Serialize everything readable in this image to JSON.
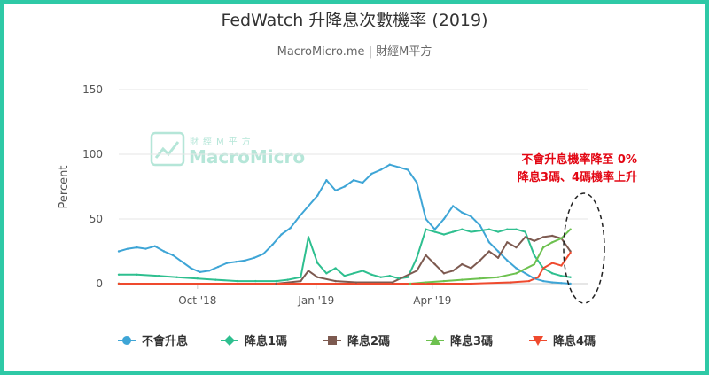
{
  "chart_data": {
    "type": "line",
    "title": "FedWatch 升降息次數機率 (2019)",
    "subtitle": "MacroMicro.me | 財經M平方",
    "ylabel": "Percent",
    "ylim": [
      0,
      150
    ],
    "yticks": [
      0,
      50,
      100,
      150
    ],
    "xlim": [
      "2018-08-01",
      "2019-07-31"
    ],
    "xticks": [
      {
        "date": "2018-10-01",
        "label": "Oct '18"
      },
      {
        "date": "2019-01-01",
        "label": "Jan '19"
      },
      {
        "date": "2019-04-01",
        "label": "Apr '19"
      }
    ],
    "grid": true,
    "legend_position": "bottom",
    "annotation": {
      "line1": "不會升息機率降至 0%",
      "line2": "降息3碼、4碼機率上升"
    },
    "watermark": {
      "top": "財經M平方",
      "bottom": "MacroMicro"
    },
    "series": [
      {
        "name": "不會升息",
        "color": "#3ea5d6",
        "marker": "circle",
        "points": [
          [
            "2018-08-01",
            25
          ],
          [
            "2018-08-08",
            27
          ],
          [
            "2018-08-15",
            28
          ],
          [
            "2018-08-22",
            27
          ],
          [
            "2018-08-29",
            29
          ],
          [
            "2018-09-05",
            25
          ],
          [
            "2018-09-12",
            22
          ],
          [
            "2018-09-19",
            17
          ],
          [
            "2018-09-26",
            12
          ],
          [
            "2018-10-03",
            9
          ],
          [
            "2018-10-10",
            10
          ],
          [
            "2018-10-17",
            13
          ],
          [
            "2018-10-24",
            16
          ],
          [
            "2018-10-31",
            17
          ],
          [
            "2018-11-07",
            18
          ],
          [
            "2018-11-14",
            20
          ],
          [
            "2018-11-21",
            23
          ],
          [
            "2018-11-28",
            30
          ],
          [
            "2018-12-05",
            38
          ],
          [
            "2018-12-12",
            43
          ],
          [
            "2018-12-19",
            52
          ],
          [
            "2018-12-26",
            60
          ],
          [
            "2019-01-02",
            68
          ],
          [
            "2019-01-09",
            80
          ],
          [
            "2019-01-16",
            72
          ],
          [
            "2019-01-23",
            75
          ],
          [
            "2019-01-30",
            80
          ],
          [
            "2019-02-06",
            78
          ],
          [
            "2019-02-13",
            85
          ],
          [
            "2019-02-20",
            88
          ],
          [
            "2019-02-27",
            92
          ],
          [
            "2019-03-06",
            90
          ],
          [
            "2019-03-13",
            88
          ],
          [
            "2019-03-20",
            78
          ],
          [
            "2019-03-27",
            50
          ],
          [
            "2019-04-03",
            42
          ],
          [
            "2019-04-10",
            50
          ],
          [
            "2019-04-17",
            60
          ],
          [
            "2019-04-24",
            55
          ],
          [
            "2019-05-01",
            52
          ],
          [
            "2019-05-08",
            45
          ],
          [
            "2019-05-15",
            32
          ],
          [
            "2019-05-22",
            25
          ],
          [
            "2019-05-29",
            18
          ],
          [
            "2019-06-05",
            12
          ],
          [
            "2019-06-12",
            8
          ],
          [
            "2019-06-19",
            4
          ],
          [
            "2019-06-26",
            2
          ],
          [
            "2019-07-03",
            1
          ],
          [
            "2019-07-10",
            0.5
          ],
          [
            "2019-07-17",
            0
          ]
        ]
      },
      {
        "name": "降息1碼",
        "color": "#2ebf8f",
        "marker": "diamond",
        "points": [
          [
            "2018-08-01",
            7
          ],
          [
            "2018-08-15",
            7
          ],
          [
            "2018-09-01",
            6
          ],
          [
            "2018-09-15",
            5
          ],
          [
            "2018-10-01",
            4
          ],
          [
            "2018-10-15",
            3
          ],
          [
            "2018-11-01",
            2
          ],
          [
            "2018-11-15",
            2
          ],
          [
            "2018-12-01",
            2
          ],
          [
            "2018-12-10",
            3
          ],
          [
            "2018-12-20",
            5
          ],
          [
            "2018-12-26",
            36
          ],
          [
            "2019-01-02",
            16
          ],
          [
            "2019-01-09",
            8
          ],
          [
            "2019-01-16",
            12
          ],
          [
            "2019-01-23",
            6
          ],
          [
            "2019-01-30",
            8
          ],
          [
            "2019-02-06",
            10
          ],
          [
            "2019-02-13",
            7
          ],
          [
            "2019-02-20",
            5
          ],
          [
            "2019-02-27",
            6
          ],
          [
            "2019-03-06",
            4
          ],
          [
            "2019-03-13",
            5
          ],
          [
            "2019-03-20",
            20
          ],
          [
            "2019-03-27",
            42
          ],
          [
            "2019-04-03",
            40
          ],
          [
            "2019-04-10",
            38
          ],
          [
            "2019-04-17",
            40
          ],
          [
            "2019-04-24",
            42
          ],
          [
            "2019-05-01",
            40
          ],
          [
            "2019-05-08",
            41
          ],
          [
            "2019-05-15",
            42
          ],
          [
            "2019-05-22",
            40
          ],
          [
            "2019-05-29",
            42
          ],
          [
            "2019-06-05",
            42
          ],
          [
            "2019-06-12",
            40
          ],
          [
            "2019-06-19",
            22
          ],
          [
            "2019-06-26",
            12
          ],
          [
            "2019-07-03",
            8
          ],
          [
            "2019-07-10",
            6
          ],
          [
            "2019-07-17",
            5
          ]
        ]
      },
      {
        "name": "降息2碼",
        "color": "#7d5a50",
        "marker": "square",
        "points": [
          [
            "2018-08-01",
            0
          ],
          [
            "2018-12-01",
            0
          ],
          [
            "2018-12-20",
            2
          ],
          [
            "2018-12-26",
            10
          ],
          [
            "2019-01-02",
            5
          ],
          [
            "2019-01-16",
            2
          ],
          [
            "2019-02-01",
            1
          ],
          [
            "2019-03-01",
            1
          ],
          [
            "2019-03-20",
            10
          ],
          [
            "2019-03-27",
            22
          ],
          [
            "2019-04-03",
            15
          ],
          [
            "2019-04-10",
            8
          ],
          [
            "2019-04-17",
            10
          ],
          [
            "2019-04-24",
            15
          ],
          [
            "2019-05-01",
            12
          ],
          [
            "2019-05-08",
            18
          ],
          [
            "2019-05-15",
            25
          ],
          [
            "2019-05-22",
            20
          ],
          [
            "2019-05-29",
            32
          ],
          [
            "2019-06-05",
            28
          ],
          [
            "2019-06-12",
            36
          ],
          [
            "2019-06-19",
            33
          ],
          [
            "2019-06-26",
            36
          ],
          [
            "2019-07-03",
            37
          ],
          [
            "2019-07-10",
            35
          ],
          [
            "2019-07-17",
            25
          ]
        ]
      },
      {
        "name": "降息3碼",
        "color": "#6dc14f",
        "marker": "triangle-up",
        "points": [
          [
            "2018-08-01",
            0
          ],
          [
            "2019-03-15",
            0
          ],
          [
            "2019-03-27",
            1
          ],
          [
            "2019-04-10",
            2
          ],
          [
            "2019-04-24",
            3
          ],
          [
            "2019-05-08",
            4
          ],
          [
            "2019-05-22",
            5
          ],
          [
            "2019-06-05",
            8
          ],
          [
            "2019-06-19",
            15
          ],
          [
            "2019-06-26",
            28
          ],
          [
            "2019-07-03",
            32
          ],
          [
            "2019-07-10",
            35
          ],
          [
            "2019-07-17",
            42
          ]
        ]
      },
      {
        "name": "降息4碼",
        "color": "#ef4a2e",
        "marker": "triangle-down",
        "points": [
          [
            "2018-08-01",
            0
          ],
          [
            "2019-05-01",
            0
          ],
          [
            "2019-06-01",
            1
          ],
          [
            "2019-06-15",
            2
          ],
          [
            "2019-06-22",
            5
          ],
          [
            "2019-06-26",
            12
          ],
          [
            "2019-07-03",
            16
          ],
          [
            "2019-07-10",
            14
          ],
          [
            "2019-07-17",
            24
          ]
        ]
      }
    ]
  }
}
